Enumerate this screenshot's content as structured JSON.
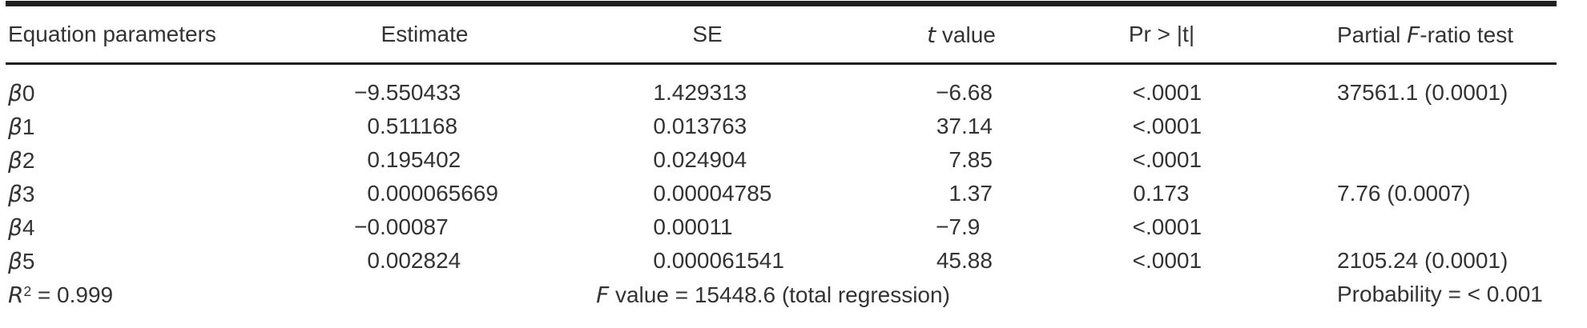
{
  "colors": {
    "text": "#333333",
    "rule": "#1f1f1f",
    "background": "#ffffff"
  },
  "table": {
    "headers": {
      "parameter": "Equation parameters",
      "estimate": "Estimate",
      "se": "SE",
      "t_value": {
        "italic": "t",
        "post": " value"
      },
      "pr": "Pr > |t|",
      "partial_f": {
        "pre": "Partial ",
        "italic": "F",
        "post": "-ratio test"
      }
    },
    "rows": [
      {
        "symbol": "β",
        "index": "0",
        "estimate": "−9.550433",
        "se": "1.429313",
        "t": "−6.68",
        "pr": "<.0001",
        "partial_f": "37561.1 (0.0001)"
      },
      {
        "symbol": "β",
        "index": "1",
        "estimate": "0.511168",
        "se": "0.013763",
        "t": "37.14",
        "pr": "<.0001",
        "partial_f": ""
      },
      {
        "symbol": "β",
        "index": "2",
        "estimate": "0.195402",
        "se": "0.024904",
        "t": "7.85",
        "pr": "<.0001",
        "partial_f": ""
      },
      {
        "symbol": "β",
        "index": "3",
        "estimate": "0.000065669",
        "se": "0.00004785",
        "t": "1.37",
        "pr": "0.173",
        "partial_f": "7.76 (0.0007)"
      },
      {
        "symbol": "β",
        "index": "4",
        "estimate": "−0.00087",
        "se": "0.00011",
        "t": "−7.9",
        "pr": "<.0001",
        "partial_f": ""
      },
      {
        "symbol": "β",
        "index": "5",
        "estimate": "0.002824",
        "se": "0.000061541",
        "t": "45.88",
        "pr": "<.0001",
        "partial_f": "2105.24 (0.0001)"
      }
    ],
    "footer": {
      "r2": {
        "base": "R",
        "sup": "2",
        "rest": " = 0.999"
      },
      "f_value": {
        "italic": "F",
        "post": " value = 15448.6 (total regression)"
      },
      "probability": "Probability = < 0.001"
    }
  }
}
